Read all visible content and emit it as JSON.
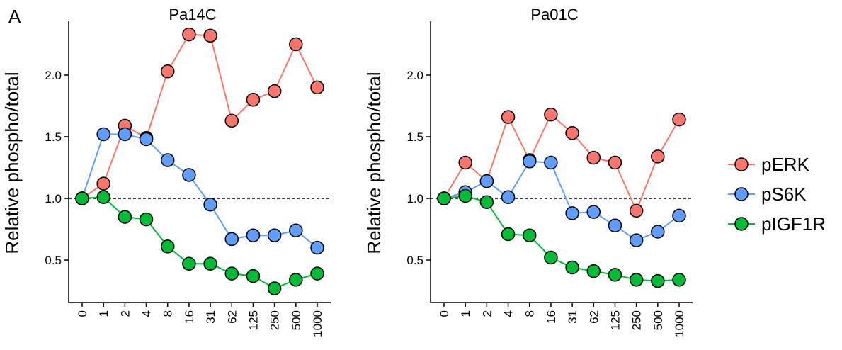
{
  "figure_label": "A",
  "chart_data": [
    {
      "type": "line",
      "title": "Pa14C",
      "ylabel": "Relative phospho/total",
      "xlabel": "",
      "categories": [
        "0",
        "1",
        "2",
        "4",
        "8",
        "16",
        "31",
        "62",
        "125",
        "250",
        "500",
        "1000"
      ],
      "ylim": [
        0.2,
        2.45
      ],
      "yticks": [
        0.5,
        1.0,
        1.5,
        2.0
      ],
      "ytick_labels": [
        "0.5",
        "1.0",
        "1.5",
        "2.0"
      ],
      "reference_line": 1.0,
      "grid": false,
      "series": [
        {
          "name": "pERK",
          "color": "#F8766D",
          "values": [
            1.0,
            1.12,
            1.59,
            1.49,
            2.03,
            2.33,
            2.32,
            1.63,
            1.8,
            1.87,
            2.25,
            1.9
          ]
        },
        {
          "name": "pS6K",
          "color": "#619CFF",
          "values": [
            1.0,
            1.52,
            1.52,
            1.48,
            1.31,
            1.19,
            0.95,
            0.67,
            0.7,
            0.7,
            0.74,
            0.6
          ]
        },
        {
          "name": "pIGF1R",
          "color": "#00BA38",
          "values": [
            1.0,
            1.01,
            0.85,
            0.83,
            0.61,
            0.47,
            0.47,
            0.39,
            0.37,
            0.27,
            0.34,
            0.39
          ]
        }
      ]
    },
    {
      "type": "line",
      "title": "Pa01C",
      "ylabel": "Relative phospho/total",
      "xlabel": "",
      "categories": [
        "0",
        "1",
        "2",
        "4",
        "8",
        "16",
        "31",
        "62",
        "125",
        "250",
        "500",
        "1000"
      ],
      "ylim": [
        0.2,
        2.45
      ],
      "yticks": [
        0.5,
        1.0,
        1.5,
        2.0
      ],
      "ytick_labels": [
        "0.5",
        "1.0",
        "1.5",
        "2.0"
      ],
      "reference_line": 1.0,
      "grid": false,
      "series": [
        {
          "name": "pERK",
          "color": "#F8766D",
          "values": [
            1.0,
            1.29,
            1.14,
            1.66,
            1.31,
            1.68,
            1.53,
            1.33,
            1.29,
            0.9,
            1.34,
            1.64
          ]
        },
        {
          "name": "pS6K",
          "color": "#619CFF",
          "values": [
            1.0,
            1.05,
            1.14,
            1.01,
            1.3,
            1.29,
            0.88,
            0.89,
            0.78,
            0.66,
            0.73,
            0.86
          ]
        },
        {
          "name": "pIGF1R",
          "color": "#00BA38",
          "values": [
            1.0,
            1.02,
            0.97,
            0.71,
            0.7,
            0.52,
            0.44,
            0.41,
            0.38,
            0.34,
            0.33,
            0.34
          ]
        }
      ]
    }
  ],
  "legend": {
    "position": "right",
    "items": [
      {
        "label": "pERK",
        "color": "#F8766D"
      },
      {
        "label": "pS6K",
        "color": "#619CFF"
      },
      {
        "label": "pIGF1R",
        "color": "#00BA38"
      }
    ]
  }
}
